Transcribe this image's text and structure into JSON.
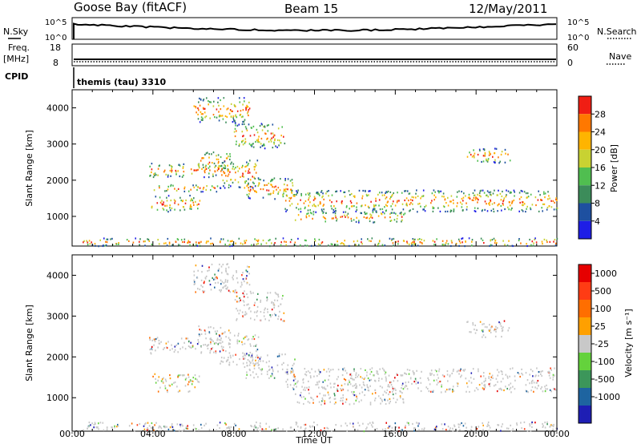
{
  "header": {
    "station": "Goose Bay (fitACF)",
    "beam": "Beam 15",
    "date": "12/May/2011"
  },
  "top_panels": {
    "nsky_label": "N.Sky",
    "nsky_ticks": [
      "10^5",
      "10^0"
    ],
    "nsearch_label": "N.Search",
    "nsearch_ticks": [
      "10^5",
      "10^0"
    ],
    "freq_label": "Freq.",
    "freq_unit": "[MHz]",
    "freq_ticks": [
      "18",
      "8"
    ],
    "nave_label": "Nave",
    "nave_ticks": [
      "60",
      "0"
    ],
    "cpid_label": "CPID",
    "cpid_value": "themis (tau) 3310"
  },
  "chart_data": [
    {
      "type": "heatmap",
      "name": "power-panel",
      "ylabel": "Slant Range [km]",
      "ylim": [
        180,
        4500
      ],
      "yticks": [
        "1000",
        "2000",
        "3000",
        "4000"
      ],
      "xlim_hours": [
        0,
        24
      ],
      "colorbar_label": "Power [dB]",
      "colorbar_ticks": [
        "4",
        "8",
        "12",
        "16",
        "20",
        "24",
        "28"
      ],
      "colors": [
        "#1e1ee6",
        "#1e50a0",
        "#3c8c5a",
        "#50be50",
        "#c8d232",
        "#ffb400",
        "#ff7800",
        "#f01e14"
      ],
      "bands": [
        {
          "t0": 3.9,
          "t1": 6.3,
          "r0": 1150,
          "r1": 1600
        },
        {
          "t0": 3.9,
          "t1": 7.2,
          "r0": 1700,
          "r1": 1900
        },
        {
          "t0": 3.8,
          "t1": 7.3,
          "r0": 2100,
          "r1": 2500
        },
        {
          "t0": 6.2,
          "t1": 7.8,
          "r0": 2300,
          "r1": 2800
        },
        {
          "t0": 7.3,
          "t1": 9.2,
          "r0": 1800,
          "r1": 2600
        },
        {
          "t0": 8.5,
          "t1": 11.0,
          "r0": 1500,
          "r1": 2100
        },
        {
          "t0": 10.5,
          "t1": 24.0,
          "r0": 1150,
          "r1": 1750
        },
        {
          "t0": 11.0,
          "t1": 16.5,
          "r0": 850,
          "r1": 1150
        },
        {
          "t0": 19.5,
          "t1": 21.7,
          "r0": 2500,
          "r1": 2900
        },
        {
          "t0": 8.0,
          "t1": 10.5,
          "r0": 2900,
          "r1": 3600
        },
        {
          "t0": 6.0,
          "t1": 8.8,
          "r0": 3600,
          "r1": 4300
        },
        {
          "t0": 0.5,
          "t1": 24.0,
          "r0": 200,
          "r1": 420
        }
      ]
    },
    {
      "type": "heatmap",
      "name": "velocity-panel",
      "ylabel": "Slant Range [km]",
      "ylim": [
        180,
        4500
      ],
      "yticks": [
        "1000",
        "2000",
        "3000",
        "4000"
      ],
      "xlim_hours": [
        0,
        24
      ],
      "xticks": [
        "00:00",
        "04:00",
        "08:00",
        "12:00",
        "16:00",
        "20:00",
        "00:00"
      ],
      "xlabel": "Time UT",
      "colorbar_label": "Velocity [m s⁻¹]",
      "colorbar_ticks": [
        "1000",
        "500",
        "100",
        "25",
        "-25",
        "-100",
        "-500",
        "-1000"
      ],
      "colors": [
        "#1e1eb4",
        "#1e64a0",
        "#3c965a",
        "#64d23c",
        "#c8c8c8",
        "#ffa000",
        "#ff6e00",
        "#ff3c14",
        "#e60000"
      ],
      "bands": [
        {
          "t0": 3.9,
          "t1": 6.3,
          "r0": 1150,
          "r1": 1600
        },
        {
          "t0": 3.8,
          "t1": 7.3,
          "r0": 2100,
          "r1": 2500
        },
        {
          "t0": 6.2,
          "t1": 7.8,
          "r0": 2300,
          "r1": 2800
        },
        {
          "t0": 7.3,
          "t1": 9.2,
          "r0": 1800,
          "r1": 2600
        },
        {
          "t0": 8.5,
          "t1": 11.0,
          "r0": 1500,
          "r1": 2100
        },
        {
          "t0": 10.5,
          "t1": 24.0,
          "r0": 1150,
          "r1": 1750
        },
        {
          "t0": 11.0,
          "t1": 16.5,
          "r0": 850,
          "r1": 1150
        },
        {
          "t0": 19.5,
          "t1": 21.7,
          "r0": 2500,
          "r1": 2900
        },
        {
          "t0": 8.0,
          "t1": 10.5,
          "r0": 2900,
          "r1": 3600
        },
        {
          "t0": 6.0,
          "t1": 8.8,
          "r0": 3600,
          "r1": 4300
        },
        {
          "t0": 0.5,
          "t1": 24.0,
          "r0": 200,
          "r1": 420
        }
      ]
    }
  ]
}
